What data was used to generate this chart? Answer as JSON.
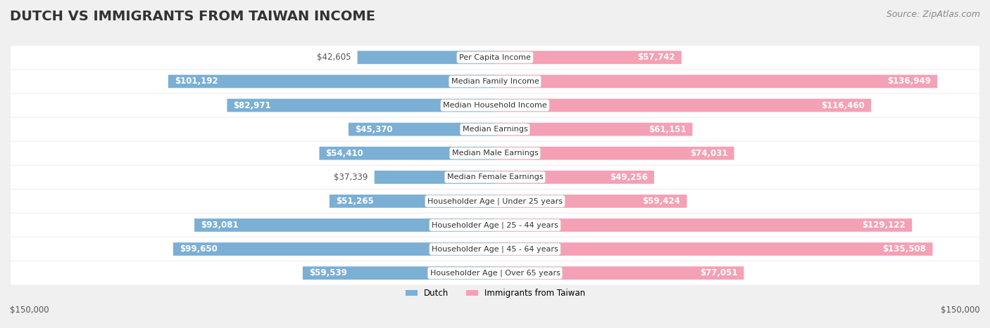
{
  "title": "DUTCH VS IMMIGRANTS FROM TAIWAN INCOME",
  "source": "Source: ZipAtlas.com",
  "categories": [
    "Per Capita Income",
    "Median Family Income",
    "Median Household Income",
    "Median Earnings",
    "Median Male Earnings",
    "Median Female Earnings",
    "Householder Age | Under 25 years",
    "Householder Age | 25 - 44 years",
    "Householder Age | 45 - 64 years",
    "Householder Age | Over 65 years"
  ],
  "dutch_values": [
    42605,
    101192,
    82971,
    45370,
    54410,
    37339,
    51265,
    93081,
    99650,
    59539
  ],
  "taiwan_values": [
    57742,
    136949,
    116460,
    61151,
    74031,
    49256,
    59424,
    129122,
    135508,
    77051
  ],
  "dutch_labels": [
    "$42,605",
    "$101,192",
    "$82,971",
    "$45,370",
    "$54,410",
    "$37,339",
    "$51,265",
    "$93,081",
    "$99,650",
    "$59,539"
  ],
  "taiwan_labels": [
    "$57,742",
    "$136,949",
    "$116,460",
    "$61,151",
    "$74,031",
    "$49,256",
    "$59,424",
    "$129,122",
    "$135,508",
    "$77,051"
  ],
  "dutch_color": "#7bafd4",
  "dutch_color_dark": "#5b8db8",
  "taiwan_color": "#f4a0b5",
  "taiwan_color_dark": "#e8728f",
  "max_value": 150000,
  "x_label_left": "$150,000",
  "x_label_right": "$150,000",
  "legend_dutch": "Dutch",
  "legend_taiwan": "Immigrants from Taiwan",
  "background_color": "#f5f5f5",
  "bar_bg_color": "#e8e8e8",
  "row_bg_color": "#ececec",
  "title_fontsize": 14,
  "source_fontsize": 9,
  "label_fontsize": 8.5,
  "category_fontsize": 8,
  "axis_label_fontsize": 8.5
}
